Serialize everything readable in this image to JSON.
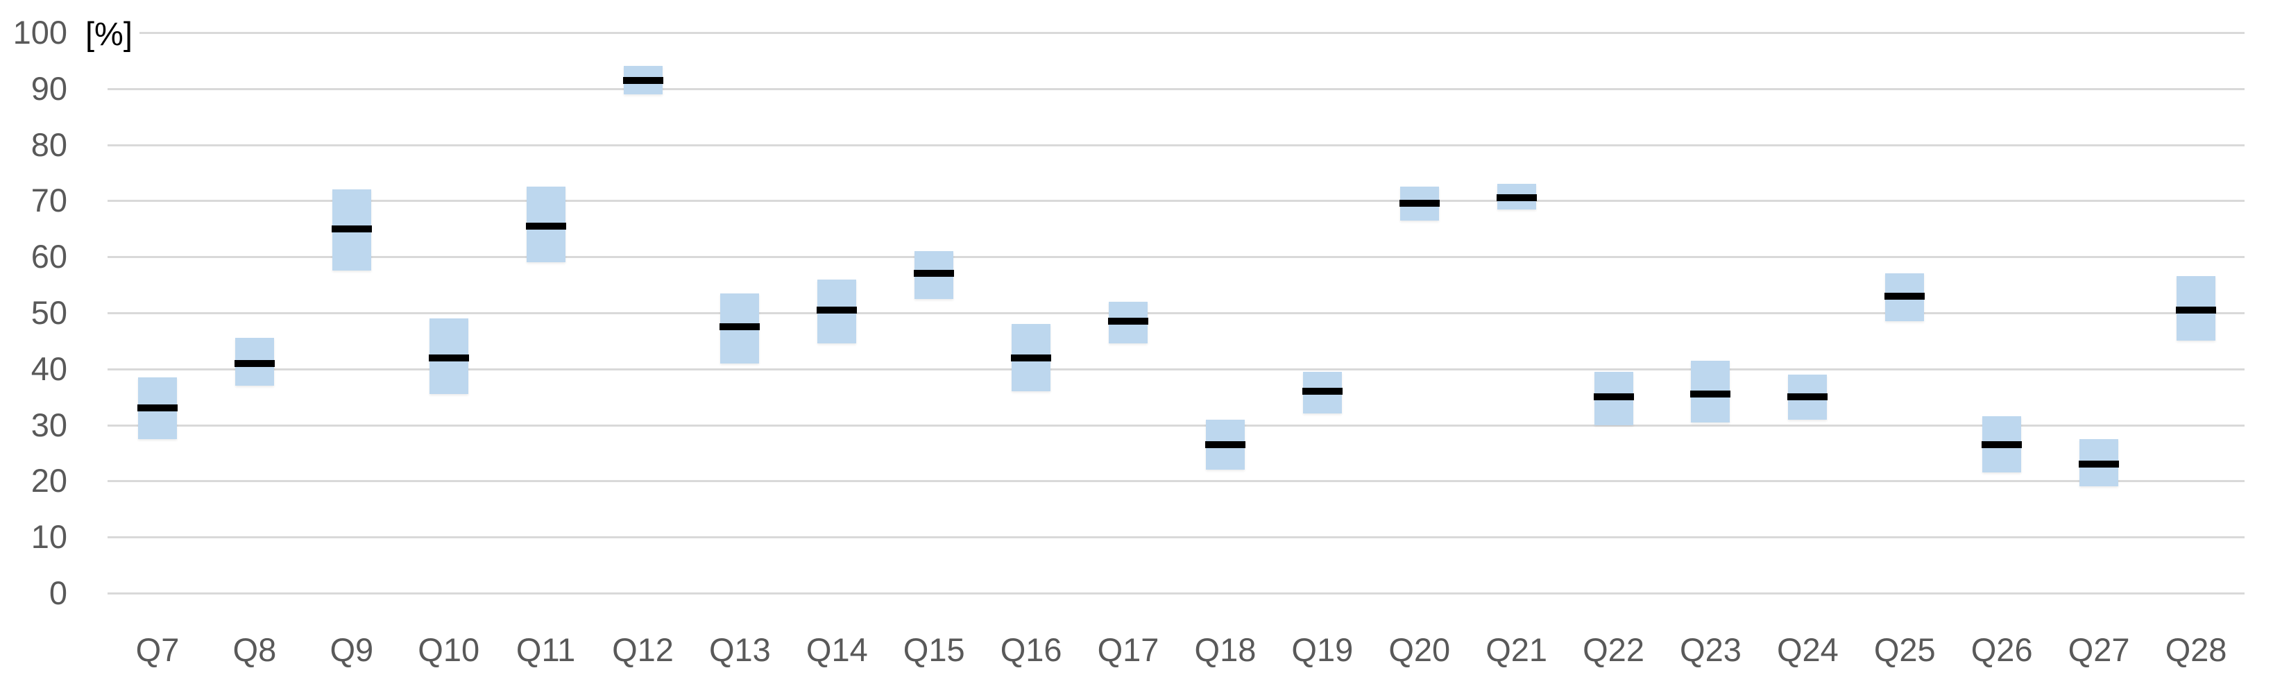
{
  "chart_data": {
    "type": "box",
    "subtype": "floating-range-bars-with-center-line",
    "title": "",
    "unit_label": "[%]",
    "categories": [
      "Q7",
      "Q8",
      "Q9",
      "Q10",
      "Q11",
      "Q12",
      "Q13",
      "Q14",
      "Q15",
      "Q16",
      "Q17",
      "Q18",
      "Q19",
      "Q20",
      "Q21",
      "Q22",
      "Q23",
      "Q24",
      "Q25",
      "Q26",
      "Q27",
      "Q28"
    ],
    "series": [
      {
        "name": "range",
        "low": [
          27.5,
          37,
          57.5,
          35.5,
          59,
          89,
          41,
          44.5,
          52.5,
          36,
          44.5,
          22,
          32,
          66.5,
          68.5,
          30,
          30.5,
          31,
          48.5,
          21.5,
          19,
          45
        ],
        "high": [
          38.5,
          45.5,
          72,
          49,
          72.5,
          94,
          53.5,
          56,
          61,
          48,
          52,
          31,
          39.5,
          72.5,
          73,
          39.5,
          41.5,
          39,
          57,
          31.5,
          27.5,
          56.5
        ]
      },
      {
        "name": "center",
        "values": [
          33,
          41,
          65,
          42,
          65.5,
          91.5,
          47.5,
          50.5,
          57,
          42,
          48.5,
          26.5,
          36,
          69.5,
          70.5,
          35,
          35.5,
          35,
          53,
          26.5,
          23,
          50.5
        ]
      }
    ],
    "xlabel": "",
    "ylabel": "",
    "ylim": [
      0,
      100
    ],
    "ytick_step": 10,
    "ytick_labels": [
      "0",
      "10",
      "20",
      "30",
      "40",
      "50",
      "60",
      "70",
      "80",
      "90",
      "100"
    ],
    "grid": true,
    "legend": "none",
    "colors": {
      "range_fill": "#bdd7ee",
      "center_line": "#000000",
      "gridline": "#d9d9d9",
      "tick_text": "#595959",
      "unit_text": "#000000",
      "background": "#ffffff"
    }
  }
}
